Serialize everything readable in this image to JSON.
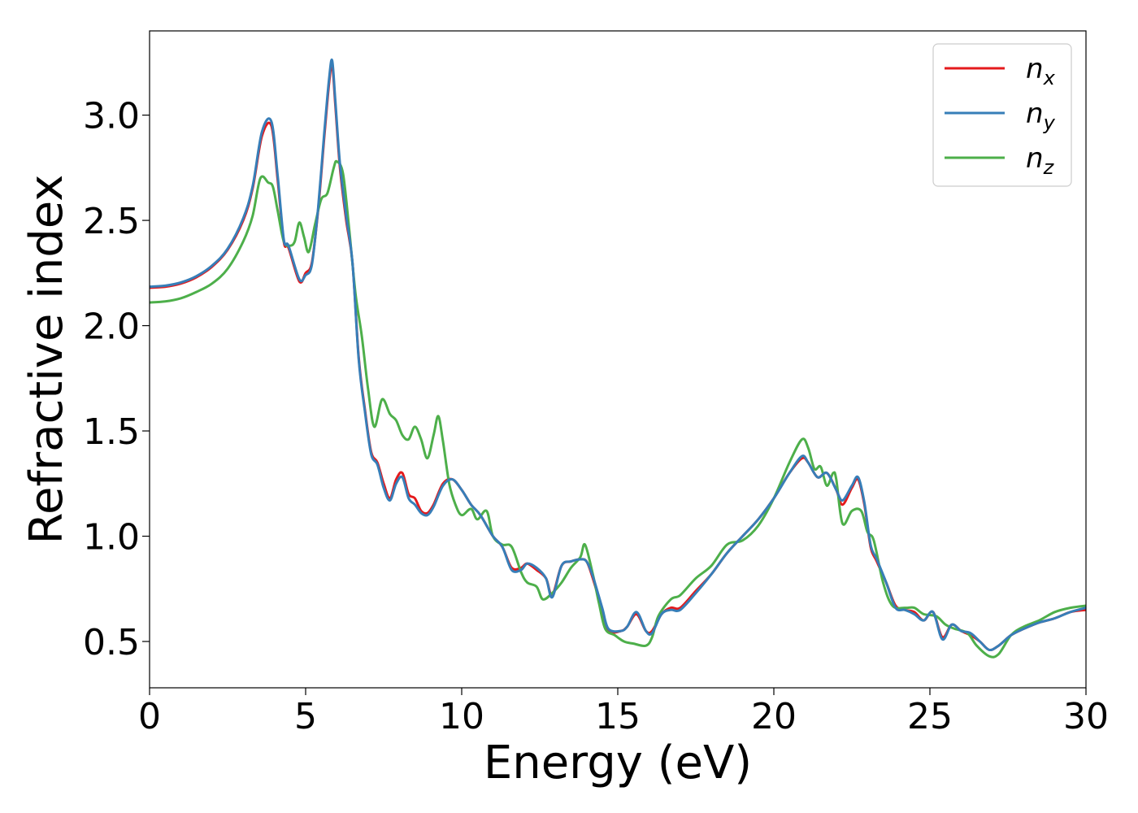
{
  "chart_data": {
    "type": "line",
    "title": "",
    "xlabel": "Energy (eV)",
    "ylabel": "Refractive index",
    "xlim": [
      0,
      30
    ],
    "ylim": [
      0.28,
      3.4
    ],
    "xticks": [
      0,
      5,
      10,
      15,
      20,
      25,
      30
    ],
    "xtick_labels": [
      "0",
      "5",
      "10",
      "15",
      "20",
      "25",
      "30"
    ],
    "yticks": [
      0.5,
      1.0,
      1.5,
      2.0,
      2.5,
      3.0
    ],
    "ytick_labels": [
      "0.5",
      "1.0",
      "1.5",
      "2.0",
      "2.5",
      "3.0"
    ],
    "grid": false,
    "legend_position": "top-right",
    "series": [
      {
        "name": "n",
        "subscript": "x",
        "color": "#e41a1c",
        "points": [
          [
            0,
            2.18
          ],
          [
            0.5,
            2.185
          ],
          [
            1,
            2.2
          ],
          [
            1.5,
            2.23
          ],
          [
            2,
            2.28
          ],
          [
            2.5,
            2.36
          ],
          [
            3,
            2.5
          ],
          [
            3.3,
            2.65
          ],
          [
            3.6,
            2.9
          ],
          [
            3.9,
            2.95
          ],
          [
            4.1,
            2.7
          ],
          [
            4.3,
            2.4
          ],
          [
            4.45,
            2.37
          ],
          [
            4.8,
            2.21
          ],
          [
            5.0,
            2.25
          ],
          [
            5.2,
            2.3
          ],
          [
            5.4,
            2.55
          ],
          [
            5.6,
            2.9
          ],
          [
            5.75,
            3.15
          ],
          [
            5.85,
            3.24
          ],
          [
            5.95,
            3.05
          ],
          [
            6.1,
            2.75
          ],
          [
            6.3,
            2.5
          ],
          [
            6.5,
            2.3
          ],
          [
            6.7,
            1.85
          ],
          [
            6.9,
            1.6
          ],
          [
            7.1,
            1.4
          ],
          [
            7.3,
            1.35
          ],
          [
            7.5,
            1.25
          ],
          [
            7.7,
            1.18
          ],
          [
            7.9,
            1.27
          ],
          [
            8.1,
            1.3
          ],
          [
            8.3,
            1.2
          ],
          [
            8.5,
            1.18
          ],
          [
            8.7,
            1.12
          ],
          [
            8.9,
            1.11
          ],
          [
            9.1,
            1.15
          ],
          [
            9.4,
            1.25
          ],
          [
            9.7,
            1.27
          ],
          [
            10.0,
            1.22
          ],
          [
            10.3,
            1.15
          ],
          [
            10.6,
            1.1
          ],
          [
            11.0,
            1.0
          ],
          [
            11.3,
            0.95
          ],
          [
            11.6,
            0.85
          ],
          [
            11.9,
            0.85
          ],
          [
            12.1,
            0.87
          ],
          [
            12.4,
            0.84
          ],
          [
            12.7,
            0.8
          ],
          [
            12.9,
            0.72
          ],
          [
            13.2,
            0.86
          ],
          [
            13.5,
            0.88
          ],
          [
            13.8,
            0.89
          ],
          [
            14.0,
            0.88
          ],
          [
            14.2,
            0.8
          ],
          [
            14.5,
            0.65
          ],
          [
            14.7,
            0.55
          ],
          [
            15.1,
            0.55
          ],
          [
            15.3,
            0.57
          ],
          [
            15.6,
            0.63
          ],
          [
            15.9,
            0.55
          ],
          [
            16.1,
            0.55
          ],
          [
            16.4,
            0.63
          ],
          [
            16.7,
            0.66
          ],
          [
            17.0,
            0.66
          ],
          [
            17.5,
            0.74
          ],
          [
            18.0,
            0.82
          ],
          [
            18.5,
            0.92
          ],
          [
            19.0,
            1.0
          ],
          [
            19.5,
            1.08
          ],
          [
            20.0,
            1.18
          ],
          [
            20.5,
            1.3
          ],
          [
            20.9,
            1.37
          ],
          [
            21.1,
            1.35
          ],
          [
            21.4,
            1.28
          ],
          [
            21.7,
            1.3
          ],
          [
            22.0,
            1.22
          ],
          [
            22.2,
            1.15
          ],
          [
            22.5,
            1.23
          ],
          [
            22.7,
            1.27
          ],
          [
            22.9,
            1.15
          ],
          [
            23.1,
            0.95
          ],
          [
            23.3,
            0.88
          ],
          [
            23.6,
            0.78
          ],
          [
            23.9,
            0.67
          ],
          [
            24.2,
            0.65
          ],
          [
            24.5,
            0.64
          ],
          [
            24.8,
            0.6
          ],
          [
            25.1,
            0.64
          ],
          [
            25.4,
            0.52
          ],
          [
            25.7,
            0.58
          ],
          [
            26.0,
            0.55
          ],
          [
            26.3,
            0.53
          ],
          [
            26.6,
            0.5
          ],
          [
            26.9,
            0.46
          ],
          [
            27.2,
            0.48
          ],
          [
            27.6,
            0.53
          ],
          [
            28.0,
            0.56
          ],
          [
            28.5,
            0.59
          ],
          [
            29.0,
            0.61
          ],
          [
            29.5,
            0.64
          ],
          [
            30.0,
            0.65
          ]
        ]
      },
      {
        "name": "n",
        "subscript": "y",
        "color": "#377eb8",
        "points": [
          [
            0,
            2.185
          ],
          [
            0.5,
            2.19
          ],
          [
            1,
            2.205
          ],
          [
            1.5,
            2.235
          ],
          [
            2,
            2.285
          ],
          [
            2.5,
            2.365
          ],
          [
            3,
            2.51
          ],
          [
            3.3,
            2.66
          ],
          [
            3.6,
            2.92
          ],
          [
            3.9,
            2.97
          ],
          [
            4.1,
            2.72
          ],
          [
            4.3,
            2.41
          ],
          [
            4.45,
            2.38
          ],
          [
            4.8,
            2.22
          ],
          [
            5.0,
            2.24
          ],
          [
            5.2,
            2.29
          ],
          [
            5.4,
            2.56
          ],
          [
            5.6,
            2.92
          ],
          [
            5.75,
            3.17
          ],
          [
            5.85,
            3.26
          ],
          [
            5.95,
            3.07
          ],
          [
            6.1,
            2.77
          ],
          [
            6.3,
            2.52
          ],
          [
            6.5,
            2.3
          ],
          [
            6.7,
            1.84
          ],
          [
            6.9,
            1.59
          ],
          [
            7.1,
            1.39
          ],
          [
            7.3,
            1.34
          ],
          [
            7.5,
            1.23
          ],
          [
            7.7,
            1.17
          ],
          [
            7.9,
            1.25
          ],
          [
            8.1,
            1.28
          ],
          [
            8.3,
            1.18
          ],
          [
            8.5,
            1.15
          ],
          [
            8.7,
            1.11
          ],
          [
            8.9,
            1.1
          ],
          [
            9.1,
            1.14
          ],
          [
            9.4,
            1.24
          ],
          [
            9.7,
            1.27
          ],
          [
            10.0,
            1.22
          ],
          [
            10.3,
            1.15
          ],
          [
            10.6,
            1.1
          ],
          [
            11.0,
            1.0
          ],
          [
            11.3,
            0.95
          ],
          [
            11.6,
            0.84
          ],
          [
            11.9,
            0.84
          ],
          [
            12.1,
            0.87
          ],
          [
            12.4,
            0.85
          ],
          [
            12.7,
            0.8
          ],
          [
            12.9,
            0.71
          ],
          [
            13.2,
            0.86
          ],
          [
            13.5,
            0.88
          ],
          [
            13.8,
            0.89
          ],
          [
            14.0,
            0.88
          ],
          [
            14.2,
            0.81
          ],
          [
            14.5,
            0.66
          ],
          [
            14.7,
            0.56
          ],
          [
            15.1,
            0.55
          ],
          [
            15.3,
            0.57
          ],
          [
            15.6,
            0.64
          ],
          [
            15.9,
            0.55
          ],
          [
            16.1,
            0.54
          ],
          [
            16.4,
            0.63
          ],
          [
            16.7,
            0.65
          ],
          [
            17.0,
            0.65
          ],
          [
            17.5,
            0.73
          ],
          [
            18.0,
            0.82
          ],
          [
            18.5,
            0.92
          ],
          [
            19.0,
            1.0
          ],
          [
            19.5,
            1.08
          ],
          [
            20.0,
            1.18
          ],
          [
            20.5,
            1.3
          ],
          [
            20.9,
            1.38
          ],
          [
            21.1,
            1.35
          ],
          [
            21.4,
            1.28
          ],
          [
            21.7,
            1.3
          ],
          [
            22.0,
            1.22
          ],
          [
            22.2,
            1.17
          ],
          [
            22.5,
            1.24
          ],
          [
            22.7,
            1.28
          ],
          [
            22.9,
            1.16
          ],
          [
            23.1,
            0.96
          ],
          [
            23.3,
            0.89
          ],
          [
            23.6,
            0.78
          ],
          [
            23.9,
            0.66
          ],
          [
            24.2,
            0.65
          ],
          [
            24.5,
            0.63
          ],
          [
            24.8,
            0.6
          ],
          [
            25.1,
            0.64
          ],
          [
            25.4,
            0.51
          ],
          [
            25.7,
            0.58
          ],
          [
            26.0,
            0.55
          ],
          [
            26.3,
            0.54
          ],
          [
            26.6,
            0.5
          ],
          [
            26.9,
            0.46
          ],
          [
            27.2,
            0.48
          ],
          [
            27.6,
            0.53
          ],
          [
            28.0,
            0.56
          ],
          [
            28.5,
            0.59
          ],
          [
            29.0,
            0.61
          ],
          [
            29.5,
            0.64
          ],
          [
            30.0,
            0.66
          ]
        ]
      },
      {
        "name": "n",
        "subscript": "z",
        "color": "#4daf4a",
        "points": [
          [
            0,
            2.11
          ],
          [
            0.5,
            2.115
          ],
          [
            1,
            2.13
          ],
          [
            1.5,
            2.16
          ],
          [
            2,
            2.2
          ],
          [
            2.5,
            2.27
          ],
          [
            3,
            2.4
          ],
          [
            3.3,
            2.52
          ],
          [
            3.55,
            2.7
          ],
          [
            3.8,
            2.68
          ],
          [
            3.95,
            2.66
          ],
          [
            4.1,
            2.55
          ],
          [
            4.3,
            2.4
          ],
          [
            4.5,
            2.38
          ],
          [
            4.65,
            2.4
          ],
          [
            4.8,
            2.49
          ],
          [
            4.95,
            2.42
          ],
          [
            5.1,
            2.35
          ],
          [
            5.3,
            2.48
          ],
          [
            5.5,
            2.6
          ],
          [
            5.7,
            2.63
          ],
          [
            5.9,
            2.75
          ],
          [
            6.0,
            2.78
          ],
          [
            6.2,
            2.72
          ],
          [
            6.4,
            2.45
          ],
          [
            6.6,
            2.15
          ],
          [
            6.8,
            1.95
          ],
          [
            7.0,
            1.7
          ],
          [
            7.2,
            1.52
          ],
          [
            7.45,
            1.65
          ],
          [
            7.7,
            1.58
          ],
          [
            7.9,
            1.55
          ],
          [
            8.1,
            1.48
          ],
          [
            8.3,
            1.46
          ],
          [
            8.5,
            1.52
          ],
          [
            8.7,
            1.46
          ],
          [
            8.9,
            1.37
          ],
          [
            9.1,
            1.48
          ],
          [
            9.25,
            1.57
          ],
          [
            9.4,
            1.45
          ],
          [
            9.6,
            1.25
          ],
          [
            9.8,
            1.15
          ],
          [
            10.0,
            1.1
          ],
          [
            10.3,
            1.13
          ],
          [
            10.5,
            1.08
          ],
          [
            10.8,
            1.12
          ],
          [
            11.0,
            1.0
          ],
          [
            11.3,
            0.96
          ],
          [
            11.6,
            0.95
          ],
          [
            11.9,
            0.83
          ],
          [
            12.1,
            0.78
          ],
          [
            12.4,
            0.76
          ],
          [
            12.6,
            0.7
          ],
          [
            12.9,
            0.73
          ],
          [
            13.2,
            0.78
          ],
          [
            13.5,
            0.85
          ],
          [
            13.8,
            0.9
          ],
          [
            13.95,
            0.96
          ],
          [
            14.2,
            0.82
          ],
          [
            14.4,
            0.68
          ],
          [
            14.6,
            0.56
          ],
          [
            14.9,
            0.53
          ],
          [
            15.2,
            0.5
          ],
          [
            15.5,
            0.49
          ],
          [
            15.9,
            0.48
          ],
          [
            16.1,
            0.52
          ],
          [
            16.3,
            0.62
          ],
          [
            16.7,
            0.7
          ],
          [
            17.0,
            0.72
          ],
          [
            17.5,
            0.8
          ],
          [
            18.0,
            0.86
          ],
          [
            18.5,
            0.96
          ],
          [
            19.0,
            0.98
          ],
          [
            19.5,
            1.05
          ],
          [
            20.0,
            1.18
          ],
          [
            20.5,
            1.35
          ],
          [
            20.9,
            1.46
          ],
          [
            21.1,
            1.42
          ],
          [
            21.3,
            1.32
          ],
          [
            21.5,
            1.33
          ],
          [
            21.7,
            1.24
          ],
          [
            21.9,
            1.3
          ],
          [
            22.0,
            1.27
          ],
          [
            22.2,
            1.06
          ],
          [
            22.5,
            1.12
          ],
          [
            22.8,
            1.12
          ],
          [
            23.0,
            1.02
          ],
          [
            23.2,
            0.98
          ],
          [
            23.5,
            0.78
          ],
          [
            23.8,
            0.67
          ],
          [
            24.2,
            0.66
          ],
          [
            24.5,
            0.66
          ],
          [
            24.8,
            0.63
          ],
          [
            25.2,
            0.62
          ],
          [
            25.5,
            0.58
          ],
          [
            25.8,
            0.56
          ],
          [
            26.2,
            0.54
          ],
          [
            26.5,
            0.48
          ],
          [
            26.9,
            0.43
          ],
          [
            27.2,
            0.44
          ],
          [
            27.6,
            0.53
          ],
          [
            28.0,
            0.57
          ],
          [
            28.5,
            0.6
          ],
          [
            29.0,
            0.64
          ],
          [
            29.5,
            0.66
          ],
          [
            30.0,
            0.67
          ]
        ]
      }
    ]
  }
}
